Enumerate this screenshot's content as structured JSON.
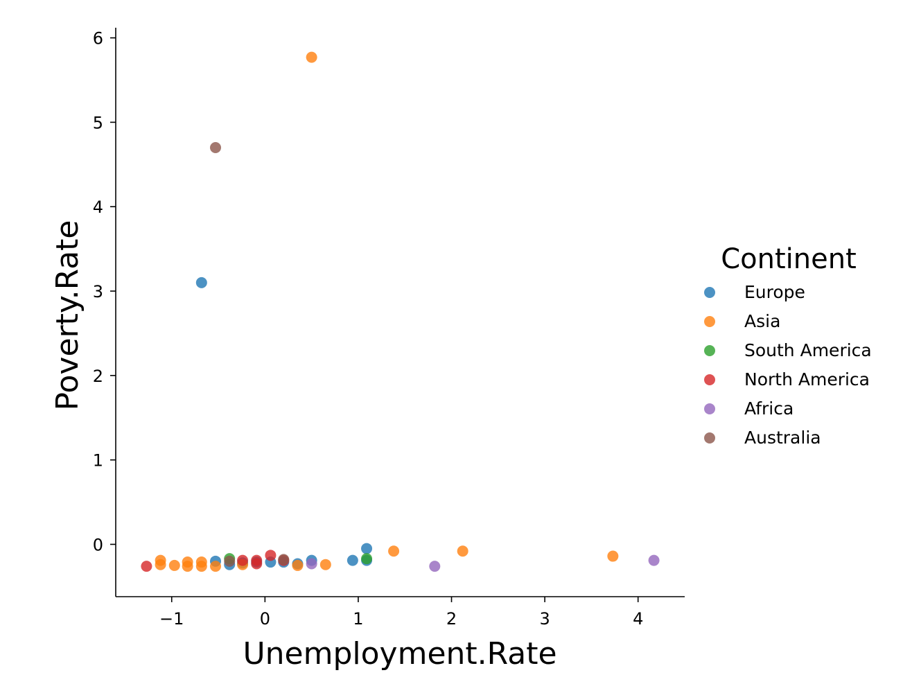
{
  "chart_data": {
    "type": "scatter",
    "xlabel": "Unemployment.Rate",
    "ylabel": "Poverty.Rate",
    "xlim": [
      -1.6,
      4.5
    ],
    "ylim": [
      -0.62,
      6.12
    ],
    "x_ticks": [
      -1,
      0,
      1,
      2,
      3,
      4
    ],
    "x_tick_labels": [
      "−1",
      "0",
      "1",
      "2",
      "3",
      "4"
    ],
    "y_ticks": [
      0,
      1,
      2,
      3,
      4,
      5,
      6
    ],
    "y_tick_labels": [
      "0",
      "1",
      "2",
      "3",
      "4",
      "5",
      "6"
    ],
    "grid": false,
    "legend": {
      "title": "Continent",
      "position": "right"
    },
    "series": [
      {
        "name": "Europe",
        "color": "#1f77b4",
        "points": [
          [
            -0.68,
            3.1
          ],
          [
            1.09,
            -0.05
          ],
          [
            0.94,
            -0.19
          ],
          [
            1.09,
            -0.19
          ],
          [
            0.5,
            -0.19
          ],
          [
            0.35,
            -0.23
          ],
          [
            0.2,
            -0.21
          ],
          [
            0.06,
            -0.21
          ],
          [
            -0.09,
            -0.21
          ],
          [
            -0.24,
            -0.22
          ],
          [
            -0.38,
            -0.24
          ],
          [
            -0.53,
            -0.2
          ]
        ]
      },
      {
        "name": "Asia",
        "color": "#ff7f0e",
        "points": [
          [
            0.5,
            5.77
          ],
          [
            1.38,
            -0.08
          ],
          [
            2.12,
            -0.08
          ],
          [
            3.73,
            -0.14
          ],
          [
            0.65,
            -0.24
          ],
          [
            0.35,
            -0.25
          ],
          [
            -0.24,
            -0.24
          ],
          [
            -0.53,
            -0.26
          ],
          [
            -0.68,
            -0.21
          ],
          [
            -0.68,
            -0.26
          ],
          [
            -0.83,
            -0.21
          ],
          [
            -0.83,
            -0.26
          ],
          [
            -0.97,
            -0.25
          ],
          [
            -1.12,
            -0.19
          ],
          [
            -1.12,
            -0.24
          ]
        ]
      },
      {
        "name": "South America",
        "color": "#2ca02c",
        "points": [
          [
            1.09,
            -0.17
          ],
          [
            -0.38,
            -0.17
          ]
        ]
      },
      {
        "name": "North America",
        "color": "#d62728",
        "points": [
          [
            -1.27,
            -0.26
          ],
          [
            0.06,
            -0.13
          ],
          [
            -0.09,
            -0.19
          ],
          [
            -0.24,
            -0.19
          ],
          [
            0.2,
            -0.19
          ],
          [
            -0.09,
            -0.23
          ]
        ]
      },
      {
        "name": "Africa",
        "color": "#9467bd",
        "points": [
          [
            1.82,
            -0.26
          ],
          [
            4.17,
            -0.19
          ],
          [
            0.5,
            -0.23
          ]
        ]
      },
      {
        "name": "Australia",
        "color": "#8c564b",
        "points": [
          [
            -0.53,
            4.7
          ],
          [
            -0.38,
            -0.2
          ],
          [
            0.2,
            -0.18
          ]
        ]
      }
    ]
  }
}
